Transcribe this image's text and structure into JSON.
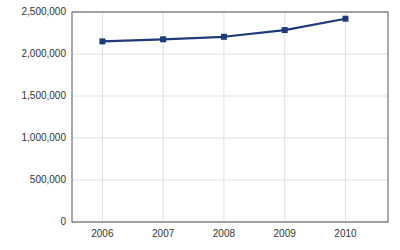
{
  "chart_data": {
    "type": "line",
    "x": [
      2006,
      2007,
      2008,
      2009,
      2010
    ],
    "values": [
      2150000,
      2175000,
      2205000,
      2285000,
      2420000
    ],
    "color": "#1e3a78",
    "marker": "square",
    "xlim": [
      2005.5,
      2010.7
    ],
    "xticks": [
      2006,
      2007,
      2008,
      2009,
      2010
    ],
    "ylim": [
      0,
      2500000
    ],
    "yticks": [
      0,
      {
        "value": 500000,
        "label": "500,000"
      },
      {
        "value": 1000000,
        "label": "1,000,000"
      },
      {
        "value": 1500000,
        "label": "1,500,000"
      },
      {
        "value": 2000000,
        "label": "2,000,000"
      },
      {
        "value": 2500000,
        "label": "2,500,000"
      }
    ],
    "grid": true
  }
}
